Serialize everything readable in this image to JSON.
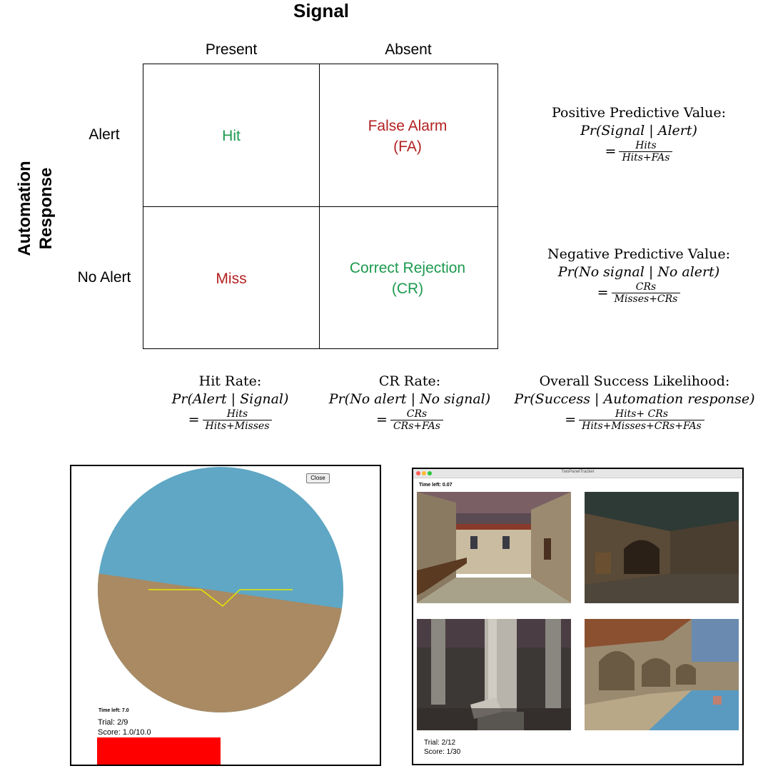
{
  "matrix": {
    "column_header": "Signal",
    "columns": [
      "Present",
      "Absent"
    ],
    "row_header": [
      "Automation",
      "Response"
    ],
    "rows": [
      "Alert",
      "No Alert"
    ],
    "cells": {
      "hit": "Hit",
      "false_alarm": [
        "False Alarm",
        "(FA)"
      ],
      "miss": "Miss",
      "correct_rejection": [
        "Correct Rejection",
        "(CR)"
      ]
    },
    "colors": {
      "green": "#1c9a4e",
      "red": "#b32020"
    }
  },
  "formulas": {
    "ppv": {
      "title": "Positive Predictive Value:",
      "prob": "Pr(Signal | Alert)",
      "num": "Hits",
      "den": "Hits+FAs"
    },
    "npv": {
      "title": "Negative Predictive Value:",
      "prob": "Pr(No signal | No alert)",
      "num": "CRs",
      "den": "Misses+CRs"
    },
    "hit_rate": {
      "title": "Hit Rate:",
      "prob": "Pr(Alert | Signal)",
      "num": "Hits",
      "den": "Hits+Misses"
    },
    "cr_rate": {
      "title": "CR Rate:",
      "prob": "Pr(No alert | No signal)",
      "num": "CRs",
      "den": "CRs+FAs"
    },
    "overall": {
      "title": "Overall Success Likelihood:",
      "prob": "Pr(Success | Automation response)",
      "num": "Hits+ CRs",
      "den": "Hits+Misses+CRs+FAs"
    },
    "equals": "="
  },
  "left_panel": {
    "close_label": "Close",
    "time_left": "Time left: 7.0",
    "trial": "Trial: 2/9",
    "score": "Score: 1.0/10.0",
    "colors": {
      "sky": "#5fa7c4",
      "ground": "#a98a63",
      "indicator": "#e6e600",
      "bar": "#ff0000"
    }
  },
  "right_panel": {
    "window_title": "TwoPanelTracker",
    "time_left": "Time left: 0.07",
    "trial": "Trial: 2/12",
    "score": "Score: 1/30"
  }
}
